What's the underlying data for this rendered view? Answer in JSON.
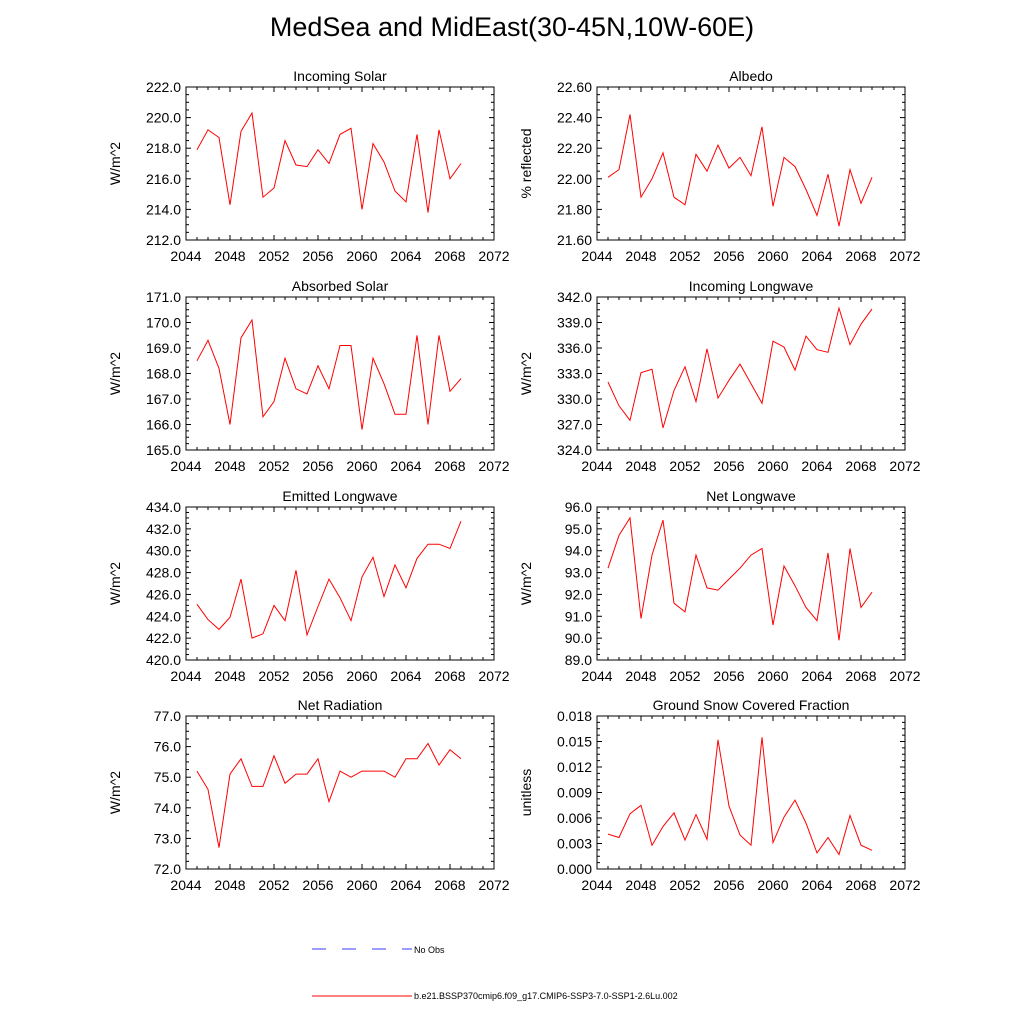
{
  "figure": {
    "title": "MedSea and MidEast(30-45N,10W-60E)"
  },
  "legend": {
    "entries": [
      {
        "label": "No Obs",
        "color": "#3b3bff",
        "dash": "dashed"
      },
      {
        "label": "b.e21.BSSP370cmip6.f09_g17.CMIP6-SSP3-7.0-SSP1-2.6Lu.002",
        "color": "#ff0000",
        "dash": "solid"
      }
    ]
  },
  "chart_data": [
    {
      "type": "line",
      "title": "Incoming Solar",
      "ylabel": "W/m^2",
      "xlim": [
        2044,
        2072
      ],
      "ylim": [
        212,
        222
      ],
      "xticks": [
        "2044",
        "2048",
        "2052",
        "2056",
        "2060",
        "2064",
        "2068",
        "2072"
      ],
      "yticks": [
        "212.0",
        "214.0",
        "216.0",
        "218.0",
        "220.0",
        "222.0"
      ],
      "series": [
        {
          "color": "#ff0000",
          "x": [
            2045,
            2046,
            2047,
            2048,
            2049,
            2050,
            2051,
            2052,
            2053,
            2054,
            2055,
            2056,
            2057,
            2058,
            2059,
            2060,
            2061,
            2062,
            2063,
            2064,
            2065,
            2066,
            2067,
            2068,
            2069
          ],
          "values": [
            217.9,
            219.2,
            218.7,
            214.3,
            219.1,
            220.3,
            214.8,
            215.4,
            218.5,
            216.9,
            216.8,
            217.9,
            217.0,
            218.9,
            219.3,
            214.0,
            218.3,
            217.1,
            215.2,
            214.5,
            218.9,
            213.8,
            219.2,
            216.0,
            217.0
          ]
        }
      ]
    },
    {
      "type": "line",
      "title": "Albedo",
      "ylabel": "% reflected",
      "xlim": [
        2044,
        2072
      ],
      "ylim": [
        21.6,
        22.6
      ],
      "xticks": [
        "2044",
        "2048",
        "2052",
        "2056",
        "2060",
        "2064",
        "2068",
        "2072"
      ],
      "yticks": [
        "21.60",
        "21.80",
        "22.00",
        "22.20",
        "22.40",
        "22.60"
      ],
      "series": [
        {
          "color": "#ff0000",
          "x": [
            2045,
            2046,
            2047,
            2048,
            2049,
            2050,
            2051,
            2052,
            2053,
            2054,
            2055,
            2056,
            2057,
            2058,
            2059,
            2060,
            2061,
            2062,
            2063,
            2064,
            2065,
            2066,
            2067,
            2068,
            2069
          ],
          "values": [
            22.01,
            22.06,
            22.42,
            21.88,
            22.0,
            22.17,
            21.88,
            21.83,
            22.16,
            22.05,
            22.22,
            22.07,
            22.14,
            22.02,
            22.34,
            21.82,
            22.14,
            22.08,
            21.93,
            21.76,
            22.03,
            21.69,
            22.06,
            21.84,
            22.01
          ]
        }
      ]
    },
    {
      "type": "line",
      "title": "Absorbed Solar",
      "ylabel": "W/m^2",
      "xlim": [
        2044,
        2072
      ],
      "ylim": [
        165,
        171
      ],
      "xticks": [
        "2044",
        "2048",
        "2052",
        "2056",
        "2060",
        "2064",
        "2068",
        "2072"
      ],
      "yticks": [
        "165.0",
        "166.0",
        "167.0",
        "168.0",
        "169.0",
        "170.0",
        "171.0"
      ],
      "series": [
        {
          "color": "#ff0000",
          "x": [
            2045,
            2046,
            2047,
            2048,
            2049,
            2050,
            2051,
            2052,
            2053,
            2054,
            2055,
            2056,
            2057,
            2058,
            2059,
            2060,
            2061,
            2062,
            2063,
            2064,
            2065,
            2066,
            2067,
            2068,
            2069
          ],
          "values": [
            168.5,
            169.3,
            168.2,
            166.0,
            169.4,
            170.1,
            166.3,
            166.9,
            168.6,
            167.4,
            167.2,
            168.3,
            167.4,
            169.1,
            169.1,
            165.8,
            168.6,
            167.6,
            166.4,
            166.4,
            169.5,
            166.0,
            169.5,
            167.3,
            167.8
          ]
        }
      ]
    },
    {
      "type": "line",
      "title": "Incoming Longwave",
      "ylabel": "W/m^2",
      "xlim": [
        2044,
        2072
      ],
      "ylim": [
        324,
        342
      ],
      "xticks": [
        "2044",
        "2048",
        "2052",
        "2056",
        "2060",
        "2064",
        "2068",
        "2072"
      ],
      "yticks": [
        "324.0",
        "327.0",
        "330.0",
        "333.0",
        "336.0",
        "339.0",
        "342.0"
      ],
      "series": [
        {
          "color": "#ff0000",
          "x": [
            2045,
            2046,
            2047,
            2048,
            2049,
            2050,
            2051,
            2052,
            2053,
            2054,
            2055,
            2056,
            2057,
            2058,
            2059,
            2060,
            2061,
            2062,
            2063,
            2064,
            2065,
            2066,
            2067,
            2068,
            2069
          ],
          "values": [
            332.0,
            329.2,
            327.5,
            333.1,
            333.5,
            326.6,
            331.0,
            333.8,
            329.7,
            335.9,
            330.1,
            332.2,
            334.1,
            331.8,
            329.5,
            336.8,
            336.1,
            333.4,
            337.4,
            335.8,
            335.5,
            340.7,
            336.4,
            338.8,
            340.6
          ]
        }
      ]
    },
    {
      "type": "line",
      "title": "Emitted Longwave",
      "ylabel": "W/m^2",
      "xlim": [
        2044,
        2072
      ],
      "ylim": [
        420,
        434
      ],
      "xticks": [
        "2044",
        "2048",
        "2052",
        "2056",
        "2060",
        "2064",
        "2068",
        "2072"
      ],
      "yticks": [
        "420.0",
        "422.0",
        "424.0",
        "426.0",
        "428.0",
        "430.0",
        "432.0",
        "434.0"
      ],
      "series": [
        {
          "color": "#ff0000",
          "x": [
            2045,
            2046,
            2047,
            2048,
            2049,
            2050,
            2051,
            2052,
            2053,
            2054,
            2055,
            2056,
            2057,
            2058,
            2059,
            2060,
            2061,
            2062,
            2063,
            2064,
            2065,
            2066,
            2067,
            2068,
            2069
          ],
          "values": [
            425.1,
            423.7,
            422.8,
            423.9,
            427.4,
            422.0,
            422.4,
            425.0,
            423.6,
            428.2,
            422.3,
            424.9,
            427.4,
            425.7,
            423.6,
            427.6,
            429.4,
            425.8,
            428.7,
            426.6,
            429.3,
            430.6,
            430.6,
            430.2,
            432.7
          ]
        }
      ]
    },
    {
      "type": "line",
      "title": "Net Longwave",
      "ylabel": "W/m^2",
      "xlim": [
        2044,
        2072
      ],
      "ylim": [
        89,
        96
      ],
      "xticks": [
        "2044",
        "2048",
        "2052",
        "2056",
        "2060",
        "2064",
        "2068",
        "2072"
      ],
      "yticks": [
        "89.0",
        "90.0",
        "91.0",
        "92.0",
        "93.0",
        "94.0",
        "95.0",
        "96.0"
      ],
      "series": [
        {
          "color": "#ff0000",
          "x": [
            2045,
            2046,
            2047,
            2048,
            2049,
            2050,
            2051,
            2052,
            2053,
            2054,
            2055,
            2056,
            2057,
            2058,
            2059,
            2060,
            2061,
            2062,
            2063,
            2064,
            2065,
            2066,
            2067,
            2068,
            2069
          ],
          "values": [
            93.2,
            94.7,
            95.5,
            90.9,
            93.8,
            95.4,
            91.6,
            91.2,
            93.8,
            92.3,
            92.2,
            92.7,
            93.2,
            93.8,
            94.1,
            90.6,
            93.3,
            92.4,
            91.4,
            90.8,
            93.9,
            89.9,
            94.1,
            91.4,
            92.1
          ]
        }
      ]
    },
    {
      "type": "line",
      "title": "Net Radiation",
      "ylabel": "W/m^2",
      "xlim": [
        2044,
        2072
      ],
      "ylim": [
        72,
        77
      ],
      "xticks": [
        "2044",
        "2048",
        "2052",
        "2056",
        "2060",
        "2064",
        "2068",
        "2072"
      ],
      "yticks": [
        "72.0",
        "73.0",
        "74.0",
        "75.0",
        "76.0",
        "77.0"
      ],
      "series": [
        {
          "color": "#ff0000",
          "x": [
            2045,
            2046,
            2047,
            2048,
            2049,
            2050,
            2051,
            2052,
            2053,
            2054,
            2055,
            2056,
            2057,
            2058,
            2059,
            2060,
            2061,
            2062,
            2063,
            2064,
            2065,
            2066,
            2067,
            2068,
            2069
          ],
          "values": [
            75.2,
            74.6,
            72.7,
            75.1,
            75.6,
            74.7,
            74.7,
            75.7,
            74.8,
            75.1,
            75.1,
            75.6,
            74.2,
            75.2,
            75.0,
            75.2,
            75.2,
            75.2,
            75.0,
            75.6,
            75.6,
            76.1,
            75.4,
            75.9,
            75.6
          ]
        }
      ]
    },
    {
      "type": "line",
      "title": "Ground Snow Covered Fraction",
      "ylabel": "unitless",
      "xlim": [
        2044,
        2072
      ],
      "ylim": [
        0,
        0.018
      ],
      "xticks": [
        "2044",
        "2048",
        "2052",
        "2056",
        "2060",
        "2064",
        "2068",
        "2072"
      ],
      "yticks": [
        "0.000",
        "0.003",
        "0.006",
        "0.009",
        "0.012",
        "0.015",
        "0.018"
      ],
      "series": [
        {
          "color": "#ff0000",
          "x": [
            2045,
            2046,
            2047,
            2048,
            2049,
            2050,
            2051,
            2052,
            2053,
            2054,
            2055,
            2056,
            2057,
            2058,
            2059,
            2060,
            2061,
            2062,
            2063,
            2064,
            2065,
            2066,
            2067,
            2068,
            2069
          ],
          "values": [
            0.0041,
            0.0037,
            0.0065,
            0.0075,
            0.0028,
            0.005,
            0.0066,
            0.0034,
            0.0064,
            0.0035,
            0.0152,
            0.0074,
            0.004,
            0.0028,
            0.0155,
            0.0031,
            0.0061,
            0.0081,
            0.0054,
            0.0019,
            0.0037,
            0.0017,
            0.0063,
            0.0028,
            0.0022
          ]
        }
      ]
    }
  ]
}
